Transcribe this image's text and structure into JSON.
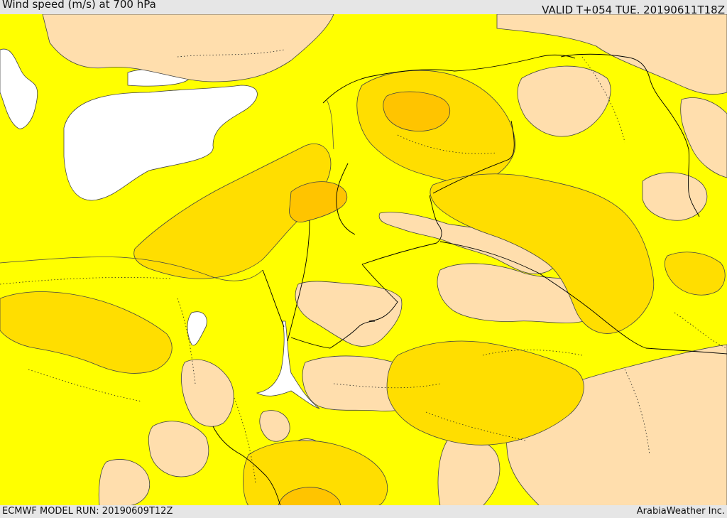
{
  "header": {
    "title": "Wind speed (m/s) at 700 hPa",
    "valid": "VALID T+054 TUE. 20190611T18Z"
  },
  "footer": {
    "model_run": "ECMWF MODEL RUN: 20190609T12Z",
    "credit": "ArabiaWeather Inc."
  },
  "colors": {
    "band_light": "#ffdead",
    "band_base": "#ffff00",
    "band_mid": "#ffde00",
    "band_high": "#ffc400",
    "band_max": "#ffad00",
    "sea": "#ffffff",
    "contour": "#444444",
    "border": "#000000"
  }
}
